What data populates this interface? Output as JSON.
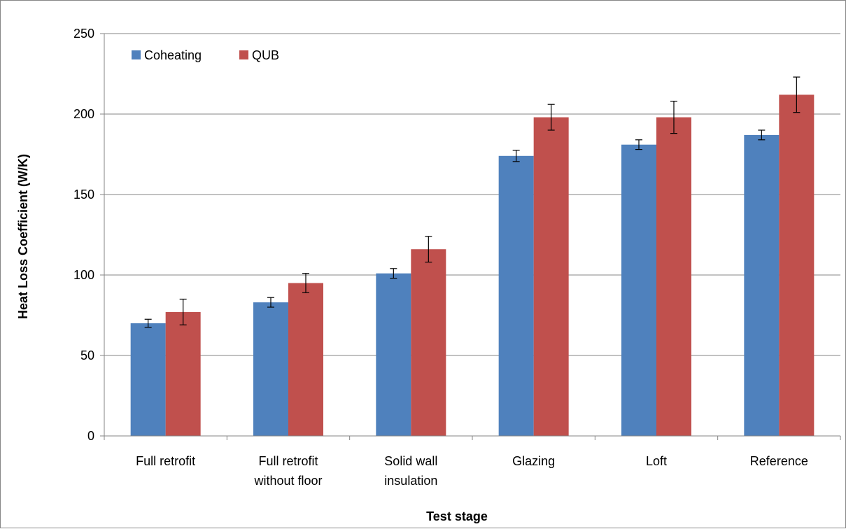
{
  "chart_data": {
    "type": "bar",
    "xlabel": "Test stage",
    "ylabel": "Heat Loss Coefficient (W/K)",
    "ylim": [
      0,
      250
    ],
    "yticks": [
      0,
      50,
      100,
      150,
      200,
      250
    ],
    "grid": true,
    "legend_position": "top-left",
    "categories": [
      [
        "Full retrofit"
      ],
      [
        "Full retrofit",
        "without floor"
      ],
      [
        "Solid wall",
        "insulation"
      ],
      [
        "Glazing"
      ],
      [
        "Loft"
      ],
      [
        "Reference"
      ]
    ],
    "series": [
      {
        "name": "Coheating",
        "color": "#4F81BD",
        "values": [
          70,
          83,
          101,
          174,
          181,
          187
        ],
        "error": [
          2.5,
          3,
          3,
          3.5,
          3,
          3
        ]
      },
      {
        "name": "QUB",
        "color": "#C0504D",
        "values": [
          77,
          95,
          116,
          198,
          198,
          212
        ],
        "error": [
          8,
          6,
          8,
          8,
          10,
          11
        ]
      }
    ]
  }
}
